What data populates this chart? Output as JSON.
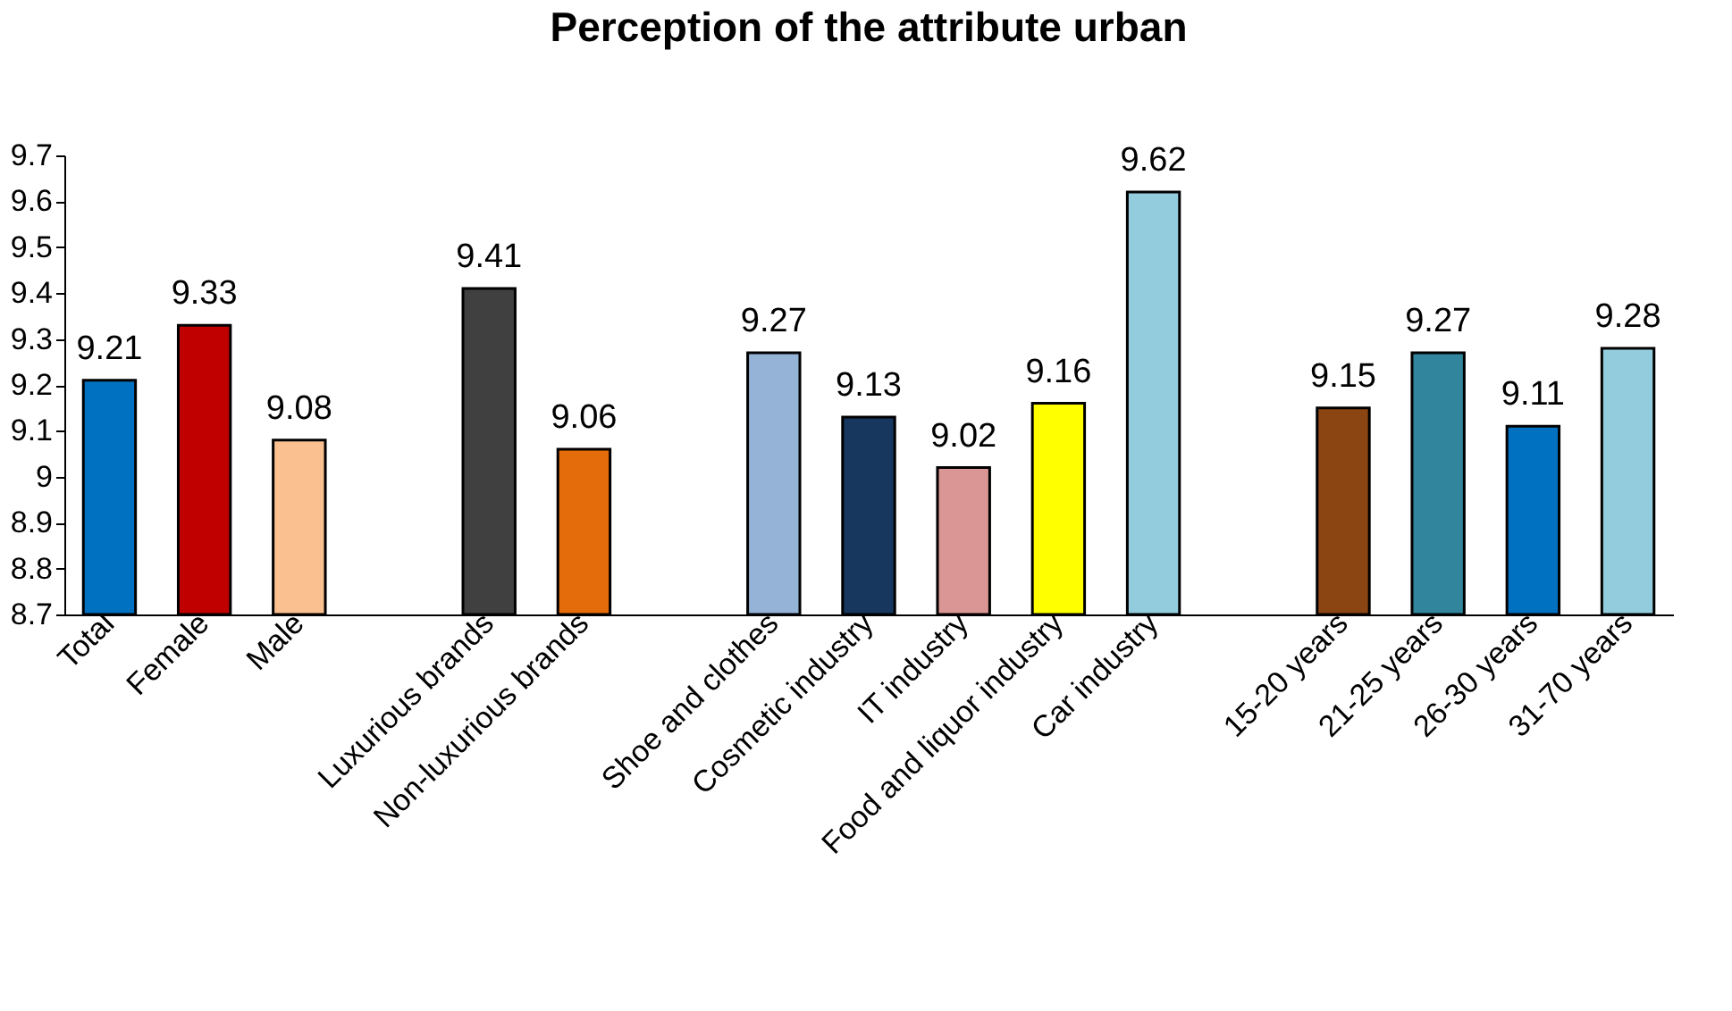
{
  "chart_data": {
    "type": "bar",
    "title": "Perception of the attribute urban",
    "categories": [
      "Total",
      "Female",
      "Male",
      null,
      "Luxurious brands",
      "Non-luxurious brands",
      null,
      "Shoe and clothes",
      "Cosmetic industry",
      "IT industry",
      "Food and liquor industry",
      "Car industry",
      null,
      "15-20 years",
      "21-25 years",
      "26-30 years",
      "31-70 years"
    ],
    "values": [
      9.21,
      9.33,
      9.08,
      null,
      9.41,
      9.06,
      null,
      9.27,
      9.13,
      9.02,
      9.16,
      9.62,
      null,
      9.15,
      9.27,
      9.11,
      9.28
    ],
    "colors": [
      "#0070c0",
      "#c00000",
      "#fac090",
      null,
      "#404040",
      "#e46c0a",
      null,
      "#95b3d7",
      "#17375e",
      "#d99694",
      "#ffff00",
      "#93cddd",
      null,
      "#8b4513",
      "#31859c",
      "#0070c0",
      "#93cddd"
    ],
    "ylim": [
      8.7,
      9.7
    ],
    "yticks": [
      8.7,
      8.8,
      8.9,
      9,
      9.1,
      9.2,
      9.3,
      9.4,
      9.5,
      9.6,
      9.7
    ],
    "grid": false,
    "data_labels": true
  }
}
